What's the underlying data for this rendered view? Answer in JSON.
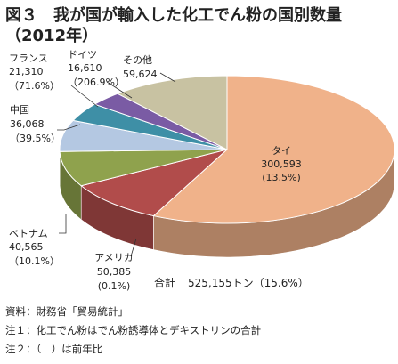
{
  "chart_data": {
    "type": "pie",
    "title": "図３　我が国が輸入した化工でん粉の国別数量",
    "subtitle": "（2012年）",
    "unit": "トン",
    "slices": [
      {
        "name": "タイ",
        "value": 300593,
        "value_text": "300,593",
        "change": "(13.5%)",
        "color": "#f0b28a"
      },
      {
        "name": "アメリカ",
        "value": 50385,
        "value_text": "50,385",
        "change": "(0.1%)",
        "color": "#b14c4b"
      },
      {
        "name": "ベトナム",
        "value": 40565,
        "value_text": "40,565",
        "change": "（10.1%）",
        "color": "#8fa24d"
      },
      {
        "name": "中国",
        "value": 36068,
        "value_text": "36,068",
        "change": "（39.5%）",
        "color": "#b4c8e2"
      },
      {
        "name": "フランス",
        "value": 21310,
        "value_text": "21,310",
        "change": "（71.6%）",
        "color": "#3e8fa6"
      },
      {
        "name": "ドイツ",
        "value": 16610,
        "value_text": "16,610",
        "change": "（206.9%）",
        "color": "#7a5ba4"
      },
      {
        "name": "その他",
        "value": 59624,
        "value_text": "59,624",
        "change": "",
        "color": "#c8c2a2"
      }
    ],
    "total": {
      "label": "合計",
      "value": 525155,
      "text": "525,155トン（15.6%）"
    }
  },
  "notes": [
    "資料：財務省「貿易統計」",
    "注１：化工でん粉はでん粉誘導体とデキストリンの合計",
    "注２：（　）は前年比"
  ]
}
